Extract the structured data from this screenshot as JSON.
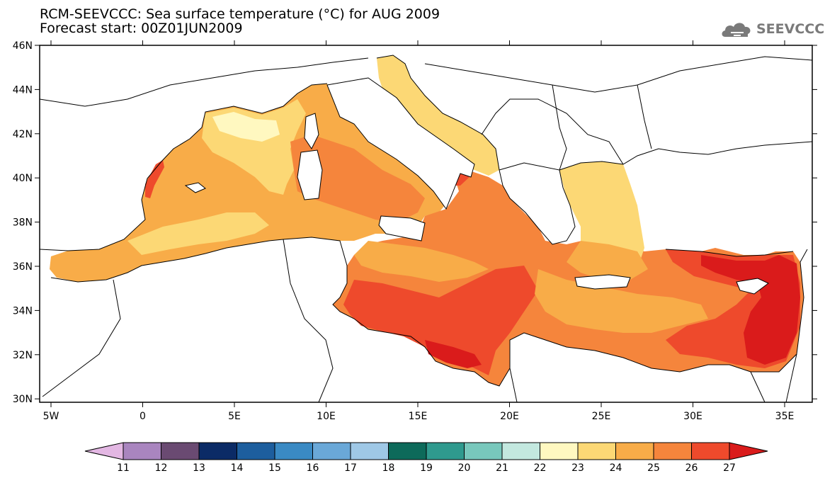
{
  "title_line1": "RCM-SEEVCCC: Sea surface temperature (°C) for AUG 2009",
  "title_line2": "Forecast start: 00Z01JUN2009",
  "logo_text": "SEEVCCC",
  "map": {
    "lon_ticks": [
      "5W",
      "0",
      "5E",
      "10E",
      "15E",
      "20E",
      "25E",
      "30E",
      "35E"
    ],
    "lat_ticks": [
      "46N",
      "44N",
      "42N",
      "40N",
      "38N",
      "36N",
      "34N",
      "32N",
      "30N"
    ]
  },
  "colorbar": {
    "labels": [
      "11",
      "12",
      "13",
      "14",
      "15",
      "16",
      "17",
      "18",
      "19",
      "20",
      "21",
      "22",
      "23",
      "24",
      "25",
      "26",
      "27"
    ],
    "colors": [
      "#e3b7e3",
      "#a985bf",
      "#6a4a72",
      "#0b2b66",
      "#1d5e9e",
      "#3a8ac4",
      "#6aa8d8",
      "#9fc8e6",
      "#0d6a5a",
      "#2f9a8e",
      "#78c8bc",
      "#c3e8df",
      "#fff8c0",
      "#fcd875",
      "#f8ac48",
      "#f5853c",
      "#ee4a2c",
      "#da1b1b"
    ]
  }
}
